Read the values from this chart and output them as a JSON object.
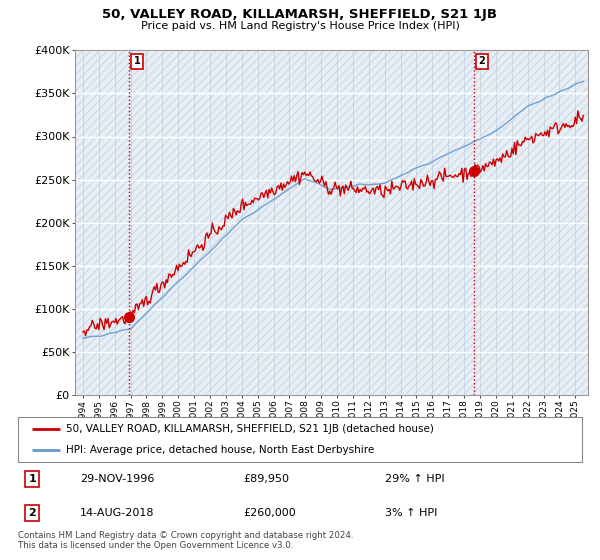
{
  "title": "50, VALLEY ROAD, KILLAMARSH, SHEFFIELD, S21 1JB",
  "subtitle": "Price paid vs. HM Land Registry's House Price Index (HPI)",
  "legend_line1": "50, VALLEY ROAD, KILLAMARSH, SHEFFIELD, S21 1JB (detached house)",
  "legend_line2": "HPI: Average price, detached house, North East Derbyshire",
  "label1_date": "29-NOV-1996",
  "label1_price": "£89,950",
  "label1_hpi": "29% ↑ HPI",
  "label2_date": "14-AUG-2018",
  "label2_price": "£260,000",
  "label2_hpi": "3% ↑ HPI",
  "footer": "Contains HM Land Registry data © Crown copyright and database right 2024.\nThis data is licensed under the Open Government Licence v3.0.",
  "red_color": "#cc0000",
  "blue_color": "#6699cc",
  "bg_color": "#dce9f5",
  "ylim": [
    0,
    400000
  ],
  "yticks": [
    0,
    50000,
    100000,
    150000,
    200000,
    250000,
    300000,
    350000,
    400000
  ],
  "ytick_labels": [
    "£0",
    "£50K",
    "£100K",
    "£150K",
    "£200K",
    "£250K",
    "£300K",
    "£350K",
    "£400K"
  ],
  "sale1_x": 1996.91,
  "sale1_y": 89950,
  "sale2_x": 2018.62,
  "sale2_y": 260000,
  "xmin": 1993.5,
  "xmax": 2025.8,
  "xtick_start": 1994,
  "xtick_end": 2025
}
